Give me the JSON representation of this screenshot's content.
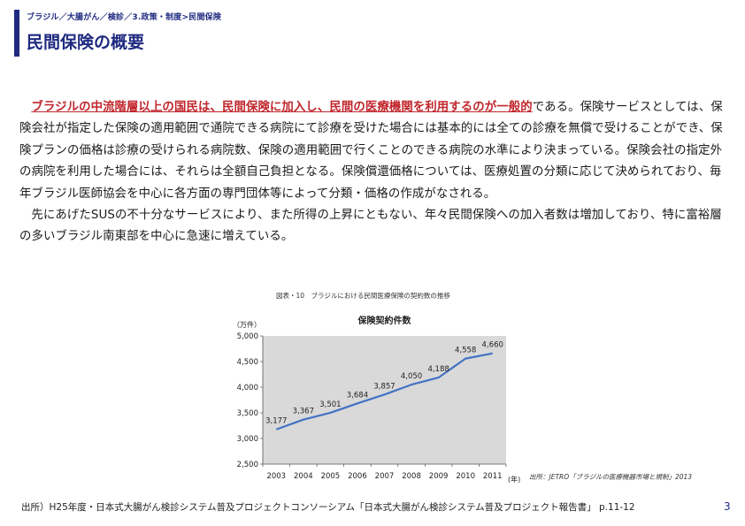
{
  "breadcrumb": "ブラジル／大腸がん／検診／3.政策・制度>民間保険",
  "page_title": "民間保険の概要",
  "paragraph1": {
    "highlight": "ブラジルの中流階層以上の国民は、民間保険に加入し、民間の医療機関を利用するのが一般的",
    "rest": "である。保険サービスとしては、保険会社が指定した保険の適用範囲で通院できる病院にて診療を受けた場合には基本的には全ての診療を無償で受けることができ、保険プランの価格は診療の受けられる病院数、保険の適用範囲で行くことのできる病院の水準により決まっている。保険会社の指定外の病院を利用した場合には、それらは全額自己負担となる。保険償還価格については、医療処置の分類に応じて決められており、毎年ブラジル医師協会を中心に各方面の専門団体等によって分類・価格の作成がなされる。"
  },
  "paragraph2": "先にあげたSUSの不十分なサービスにより、また所得の上昇にともない、年々民間保険への加入者数は増加しており、特に富裕層の多いブラジル南東部を中心に急速に増えている。",
  "chart_caption": "図表・10　ブラジルにおける民間医療保険の契約数の推移",
  "chart_source": "出所：JETRO「ブラジルの医療機器市場と規制」2013",
  "footer_source": "出所）H25年度・日本式大腸がん検診システム普及プロジェクトコンソーシアム「日本式大腸がん検診システム普及プロジェクト報告書」 p.11-12",
  "page_number": "3",
  "colors": {
    "accent": "#1f2a80",
    "highlight": "#c0262c",
    "line": "#4472c4",
    "plot_bg": "#d9d9d9"
  },
  "chart_data": {
    "type": "line",
    "title": "保険契約件数",
    "ylabel": "（万件）",
    "xlabel": "(年)",
    "x": [
      2003,
      2004,
      2005,
      2006,
      2007,
      2008,
      2009,
      2010,
      2011
    ],
    "series": [
      {
        "values": [
          3177,
          3367,
          3501,
          3684,
          3857,
          4050,
          4188,
          4558,
          4660
        ]
      }
    ],
    "ylim": [
      2500,
      5000
    ],
    "yticks": [
      "2,500",
      "3,000",
      "3,500",
      "4,000",
      "4,500",
      "5,000"
    ],
    "data_labels": [
      "3,177",
      "3,367",
      "3,501",
      "3,684",
      "3,857",
      "4,050",
      "4,188",
      "4,558",
      "4,660"
    ],
    "grid": false,
    "legend": "none"
  }
}
